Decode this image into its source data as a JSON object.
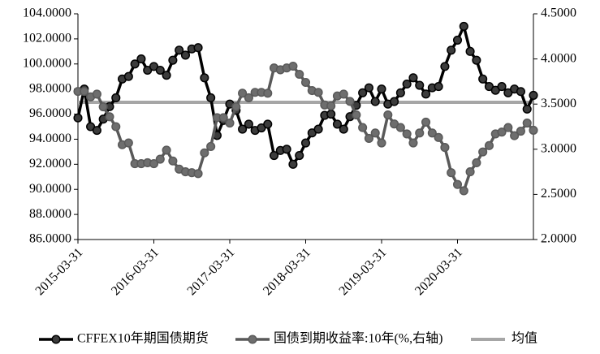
{
  "chart_data": {
    "type": "line",
    "categories": [
      "2015-03-31",
      null,
      null,
      null,
      null,
      null,
      null,
      null,
      null,
      null,
      null,
      null,
      "2016-03-31",
      null,
      null,
      null,
      null,
      null,
      null,
      null,
      null,
      null,
      null,
      null,
      "2017-03-31",
      null,
      null,
      null,
      null,
      null,
      null,
      null,
      null,
      null,
      null,
      null,
      "2018-03-31",
      null,
      null,
      null,
      null,
      null,
      null,
      null,
      null,
      null,
      null,
      null,
      "2019-03-31",
      null,
      null,
      null,
      null,
      null,
      null,
      null,
      null,
      null,
      null,
      null,
      "2020-03-31",
      null,
      null,
      null,
      null,
      null,
      null,
      null,
      null,
      null,
      null,
      null,
      null
    ],
    "series": [
      {
        "name": "CFFEX10年期国债期货",
        "color": "#000000",
        "marker_fill": "#3c3c3c",
        "values": [
          95.7,
          98.0,
          95.0,
          94.7,
          95.6,
          96.6,
          97.3,
          98.8,
          99.0,
          100.0,
          100.4,
          99.5,
          99.8,
          99.5,
          99.1,
          100.3,
          101.1,
          100.7,
          101.2,
          101.3,
          98.9,
          97.3,
          94.3,
          95.5,
          96.8,
          96.3,
          94.8,
          95.2,
          94.7,
          94.9,
          95.2,
          92.7,
          93.1,
          93.2,
          92.0,
          92.7,
          93.7,
          94.5,
          94.8,
          95.9,
          96.0,
          95.2,
          94.8,
          95.8,
          96.7,
          97.7,
          98.1,
          97.0,
          98.0,
          96.8,
          97.0,
          97.7,
          98.4,
          98.9,
          98.3,
          97.6,
          98.1,
          98.2,
          99.8,
          101.1,
          101.9,
          103.0,
          101.0,
          100.3,
          98.8,
          98.2,
          97.9,
          98.2,
          97.7,
          98.0,
          97.8,
          96.4,
          97.5
        ]
      },
      {
        "name": "国债到期收益率:10年(%,右轴)",
        "color": "#595959",
        "marker_fill": "#6e6e6e",
        "axis": "y2",
        "values": [
          3.64,
          3.64,
          3.58,
          3.61,
          3.47,
          3.36,
          3.25,
          3.05,
          3.07,
          2.84,
          2.84,
          2.85,
          2.84,
          2.89,
          2.99,
          2.87,
          2.78,
          2.75,
          2.74,
          2.73,
          2.96,
          3.03,
          3.35,
          3.35,
          3.29,
          3.47,
          3.62,
          3.57,
          3.63,
          3.63,
          3.62,
          3.9,
          3.88,
          3.9,
          3.92,
          3.83,
          3.74,
          3.65,
          3.63,
          3.49,
          3.48,
          3.59,
          3.61,
          3.53,
          3.38,
          3.24,
          3.12,
          3.18,
          3.07,
          3.38,
          3.28,
          3.24,
          3.17,
          3.07,
          3.18,
          3.3,
          3.18,
          3.13,
          3.02,
          2.74,
          2.61,
          2.54,
          2.75,
          2.85,
          2.97,
          3.04,
          3.17,
          3.19,
          3.24,
          3.15,
          3.2,
          3.29,
          3.21
        ]
      }
    ],
    "reference_line": {
      "name": "均值",
      "value": 3.52,
      "axis": "y2",
      "color": "#a6a6a6"
    },
    "ylim": [
      86,
      104
    ],
    "yticks": [
      {
        "value": 86,
        "label": "86.0000"
      },
      {
        "value": 88,
        "label": "88.0000"
      },
      {
        "value": 90,
        "label": "90.0000"
      },
      {
        "value": 92,
        "label": "92.0000"
      },
      {
        "value": 94,
        "label": "94.0000"
      },
      {
        "value": 96,
        "label": "96.0000"
      },
      {
        "value": 98,
        "label": "98.0000"
      },
      {
        "value": 100,
        "label": "100.0000"
      },
      {
        "value": 102,
        "label": "102.0000"
      },
      {
        "value": 104,
        "label": "104.0000"
      }
    ],
    "y2lim": [
      2,
      4.5
    ],
    "y2ticks": [
      {
        "value": 2,
        "label": "2.0000"
      },
      {
        "value": 2.5,
        "label": "2.5000"
      },
      {
        "value": 3,
        "label": "3.0000"
      },
      {
        "value": 3.5,
        "label": "3.5000"
      },
      {
        "value": 4,
        "label": "4.0000"
      },
      {
        "value": 4.5,
        "label": "4.5000"
      }
    ],
    "legend": "bottom"
  }
}
